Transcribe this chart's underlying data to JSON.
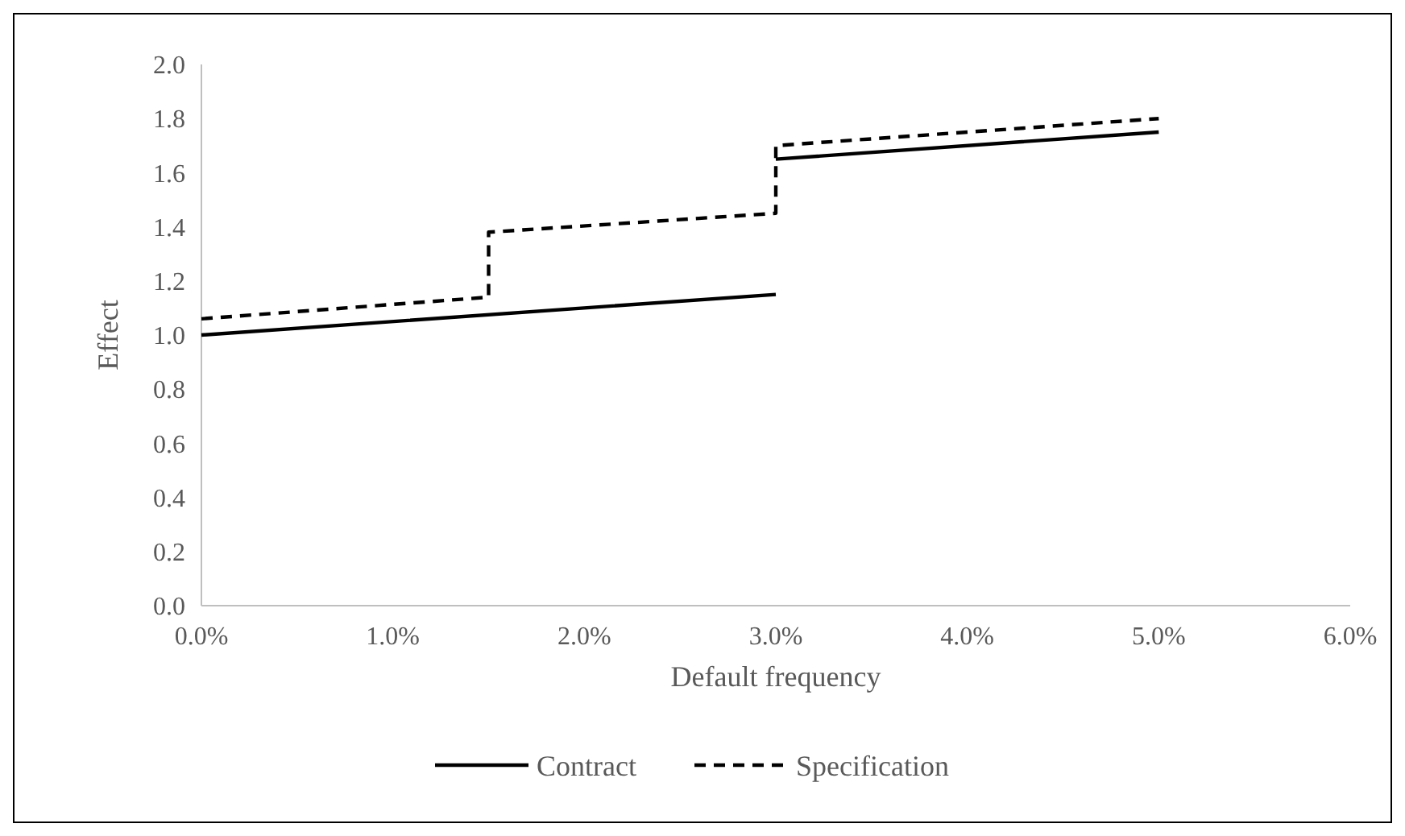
{
  "chart_data": {
    "type": "line",
    "xlabel": "Default frequency",
    "ylabel": "Effect",
    "xlim": [
      0,
      6
    ],
    "xticks": [
      {
        "value": 0,
        "label": "0.0%"
      },
      {
        "value": 1,
        "label": "1.0%"
      },
      {
        "value": 2,
        "label": "2.0%"
      },
      {
        "value": 3,
        "label": "3.0%"
      },
      {
        "value": 4,
        "label": "4.0%"
      },
      {
        "value": 5,
        "label": "5.0%"
      },
      {
        "value": 6,
        "label": "6.0%"
      }
    ],
    "ylim": [
      0,
      2
    ],
    "yticks": [
      {
        "value": 0,
        "label": "0.0"
      },
      {
        "value": 0.2,
        "label": "0.2"
      },
      {
        "value": 0.4,
        "label": "0.4"
      },
      {
        "value": 0.6,
        "label": "0.6"
      },
      {
        "value": 0.8,
        "label": "0.8"
      },
      {
        "value": 1,
        "label": "1.0"
      },
      {
        "value": 1.2,
        "label": "1.2"
      },
      {
        "value": 1.4,
        "label": "1.4"
      },
      {
        "value": 1.6,
        "label": "1.6"
      },
      {
        "value": 1.8,
        "label": "1.8"
      },
      {
        "value": 2,
        "label": "2.0"
      }
    ],
    "grid": false,
    "legend": "bottom",
    "series": [
      {
        "name": "Contract",
        "color": "#000000",
        "line_style": "solid",
        "x": [
          0,
          3,
          null,
          3,
          5
        ],
        "values": [
          1.0,
          1.15,
          null,
          1.65,
          1.75
        ]
      },
      {
        "name": "Specification",
        "color": "#000000",
        "line_style": "dashed",
        "x": [
          0,
          1.5,
          1.5,
          3,
          3,
          5
        ],
        "values": [
          1.06,
          1.14,
          1.38,
          1.45,
          1.7,
          1.8
        ]
      }
    ]
  }
}
